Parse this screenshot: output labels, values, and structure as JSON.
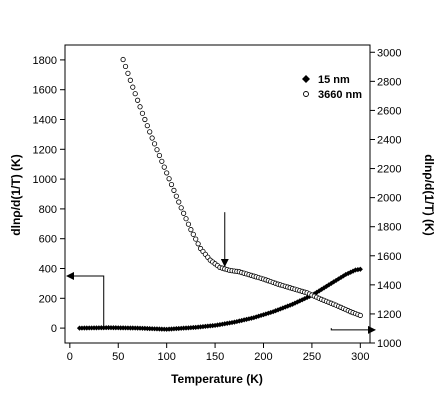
{
  "chart_data": {
    "type": "scatter",
    "xlabel": "Temperature (K)",
    "ylabel_left": "dlnρ/d(1/T) (K)",
    "ylabel_right": "dlnρ/d(1/T) (K)",
    "xlim": [
      -5,
      310
    ],
    "ylim_left": [
      -100,
      1900
    ],
    "ylim_right": [
      1000,
      3050
    ],
    "x_ticks": [
      0,
      50,
      100,
      150,
      200,
      250,
      300
    ],
    "y_left_ticks": [
      0,
      200,
      400,
      600,
      800,
      1000,
      1200,
      1400,
      1600,
      1800
    ],
    "y_right_ticks": [
      1000,
      1200,
      1400,
      1600,
      1800,
      2000,
      2200,
      2400,
      2600,
      2800,
      3000
    ],
    "legend_position": "top-right",
    "series": [
      {
        "name": "15 nm",
        "axis": "left",
        "marker": "filled-diamond",
        "color": "#000000",
        "x": [
          10,
          40,
          70,
          100,
          130,
          150,
          170,
          190,
          210,
          230,
          250,
          270,
          285,
          295,
          300
        ],
        "y": [
          0,
          3,
          0,
          -8,
          5,
          18,
          40,
          70,
          110,
          160,
          220,
          300,
          360,
          390,
          395
        ]
      },
      {
        "name": "3660 nm",
        "axis": "right",
        "marker": "open-circle",
        "color": "#000000",
        "x": [
          55,
          65,
          75,
          85,
          95,
          105,
          115,
          125,
          135,
          145,
          155,
          165,
          175,
          185,
          200,
          215,
          230,
          245,
          260,
          275,
          290,
          300
        ],
        "y": [
          2950,
          2760,
          2580,
          2410,
          2250,
          2090,
          1930,
          1780,
          1650,
          1570,
          1520,
          1500,
          1490,
          1470,
          1440,
          1405,
          1375,
          1345,
          1300,
          1260,
          1215,
          1190
        ]
      }
    ],
    "annotations": [
      {
        "type": "arrow-down",
        "x": 160,
        "y_right_from": 1900,
        "y_right_to": 1530
      },
      {
        "type": "axis-pointer",
        "target": "left-axis",
        "y_left": 350,
        "from_x": 35
      },
      {
        "type": "axis-pointer",
        "target": "right-axis",
        "y_left": 0,
        "y_right": 1090,
        "from_x": 270
      }
    ]
  },
  "colors": {
    "axis": "#000000",
    "background": "#ffffff"
  }
}
